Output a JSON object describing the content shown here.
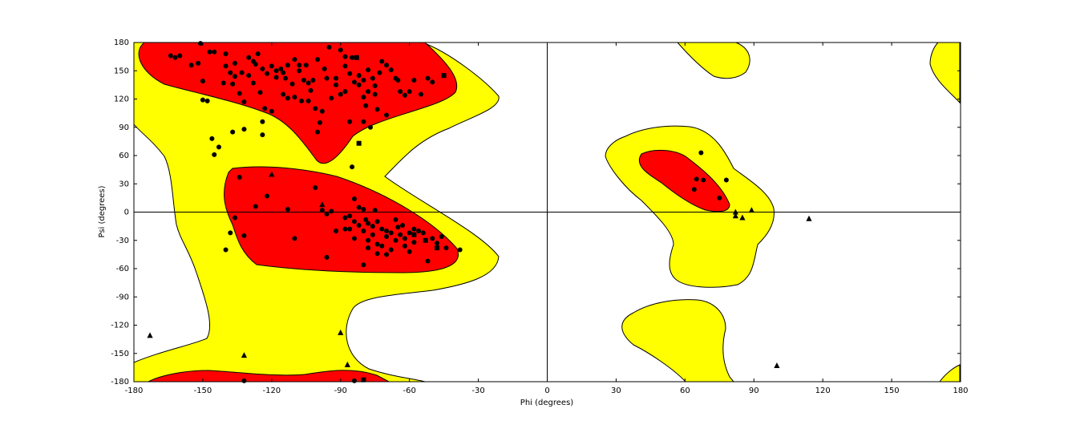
{
  "chart_data": {
    "type": "scatter",
    "xlabel": "Phi (degrees)",
    "ylabel": "Psi (degrees)",
    "xlim": [
      -180,
      180
    ],
    "ylim": [
      -180,
      180
    ],
    "xticks": [
      -180,
      -150,
      -120,
      -90,
      -60,
      -30,
      0,
      30,
      60,
      90,
      120,
      150,
      180
    ],
    "yticks": [
      -180,
      -150,
      -120,
      -90,
      -60,
      -30,
      0,
      30,
      60,
      90,
      120,
      150,
      180
    ],
    "zero_lines": true,
    "series": [
      {
        "marker": "circle",
        "color": "#000000",
        "x": [
          -164,
          -162,
          -160,
          -155,
          -152,
          -151,
          -147,
          -145,
          -140,
          -140,
          -141,
          -150,
          -150,
          -148,
          -138,
          -137,
          -136,
          -134,
          -132,
          -130,
          -128,
          -127,
          -126,
          -124,
          -122,
          -120,
          -118,
          -116,
          -115,
          -114,
          -113,
          -111,
          -110,
          -108,
          -106,
          -105,
          -104,
          -103,
          -101,
          -98,
          -96,
          -94,
          -92,
          -90,
          -88,
          -86,
          -84,
          -82,
          -80,
          -78,
          -76,
          -75,
          -73,
          -72,
          -70,
          -68,
          -66,
          -65,
          -64,
          -62,
          -60,
          -58,
          -55,
          -52,
          -50,
          -88,
          -85,
          -90,
          -95,
          -100,
          -102,
          -104,
          -107,
          -110,
          -113,
          -115,
          -118,
          -120,
          -123,
          -124,
          -124,
          -128,
          -125,
          -130,
          -133,
          -136,
          -137,
          -132,
          -146,
          -143,
          -145,
          -108,
          -97,
          -92,
          -88,
          -82,
          -80,
          -78,
          -75,
          -79,
          -74,
          -70,
          -86,
          -80,
          -77,
          -85,
          -99,
          -100,
          -134,
          -136,
          -138,
          -140,
          -132,
          -122,
          -113,
          -127,
          -110,
          -101,
          -98,
          -96,
          -94,
          -92,
          -88,
          -86,
          -84,
          -82,
          -80,
          -79,
          -78,
          -76,
          -75,
          -74,
          -72,
          -70,
          -68,
          -66,
          -65,
          -63,
          -62,
          -60,
          -58,
          -56,
          -54,
          -52,
          -50,
          -48,
          -46,
          -44,
          -38,
          -74,
          -72,
          -70,
          -68,
          -66,
          -64,
          -80,
          -82,
          -84,
          -86,
          -88,
          -78,
          -76,
          -74,
          -80,
          -96,
          -78,
          -70,
          -60,
          -58,
          -62,
          -84,
          67,
          65,
          68,
          78,
          64,
          75,
          -132,
          -84
        ],
        "y": [
          166,
          164,
          166,
          156,
          158,
          179,
          170,
          170,
          168,
          155,
          137,
          139,
          119,
          118,
          148,
          136,
          158,
          126,
          117,
          164,
          160,
          157,
          168,
          152,
          147,
          155,
          150,
          152,
          148,
          142,
          156,
          136,
          162,
          150,
          140,
          156,
          137,
          129,
          110,
          107,
          142,
          121,
          135,
          125,
          128,
          147,
          138,
          145,
          140,
          151,
          142,
          134,
          148,
          160,
          156,
          151,
          142,
          140,
          128,
          124,
          128,
          140,
          125,
          142,
          138,
          165,
          164,
          172,
          175,
          162,
          140,
          118,
          118,
          122,
          121,
          125,
          143,
          107,
          110,
          96,
          82,
          137,
          127,
          145,
          148,
          144,
          85,
          88,
          78,
          69,
          61,
          156,
          152,
          142,
          155,
          135,
          122,
          128,
          125,
          113,
          109,
          103,
          96,
          96,
          90,
          48,
          95,
          85,
          37,
          -6,
          -22,
          -40,
          -25,
          17,
          3,
          6,
          -28,
          26,
          2,
          -2,
          1,
          -20,
          -18,
          -4,
          14,
          5,
          3,
          -8,
          -12,
          -15,
          2,
          -10,
          -18,
          -26,
          -22,
          -30,
          -16,
          -14,
          -36,
          -42,
          -32,
          -20,
          -22,
          -52,
          -28,
          -33,
          -26,
          -38,
          -40,
          -44,
          -36,
          -45,
          -40,
          -8,
          -24,
          -20,
          -14,
          -10,
          -18,
          -6,
          -30,
          -24,
          -34,
          -56,
          -48,
          -38,
          -20,
          -22,
          -18,
          -28,
          -28,
          63,
          35,
          34,
          34,
          24,
          15,
          -179,
          -179
        ]
      },
      {
        "marker": "triangle",
        "color": "#000000",
        "x": [
          -173,
          -120,
          -98,
          -132,
          -90,
          -87,
          82,
          82,
          85,
          89,
          114,
          100
        ],
        "y": [
          -131,
          40,
          8,
          -152,
          -128,
          -162,
          0,
          -4,
          -6,
          2,
          -7,
          -163
        ]
      },
      {
        "marker": "square",
        "color": "#000000",
        "x": [
          -45,
          -83,
          -53,
          -48,
          -58,
          -82,
          -80
        ],
        "y": [
          145,
          164,
          -30,
          -38,
          -24,
          73,
          -178
        ]
      }
    ]
  }
}
